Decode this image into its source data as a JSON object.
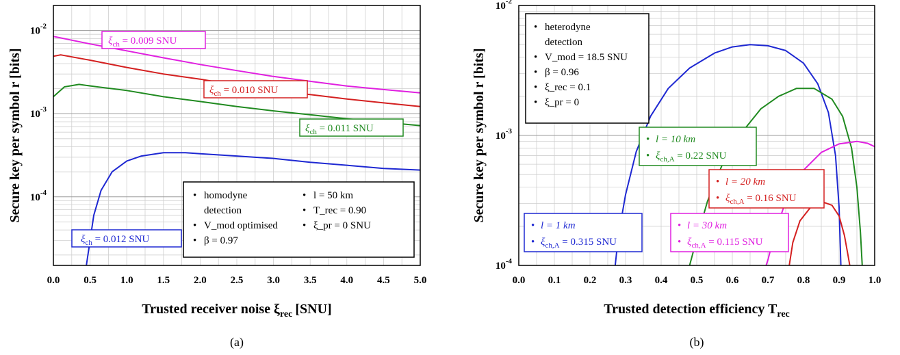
{
  "chart_data": [
    {
      "type": "line",
      "caption": "(a)",
      "xlabel": "Trusted receiver noise ξ",
      "xlabel_sub": "rec",
      "xlabel_unit": "[SNU]",
      "ylabel": "Secure key per symbol r [bits]",
      "xlim": [
        0,
        5
      ],
      "ylim": [
        1.5e-05,
        0.02
      ],
      "yscale": "log",
      "grid": true,
      "x_ticks": [
        "0.0",
        "0.5",
        "1.0",
        "1.5",
        "2.0",
        "2.5",
        "3.0",
        "3.5",
        "4.0",
        "4.5",
        "5.0"
      ],
      "y_ticks": [
        {
          "base": "10",
          "exp": "-4"
        },
        {
          "base": "10",
          "exp": "-3"
        },
        {
          "base": "10",
          "exp": "-2"
        }
      ],
      "series": [
        {
          "name_pre": "ξ",
          "name_sub": "ch",
          "name_post": " = 0.009 SNU",
          "color": "#e020e0",
          "x": [
            0,
            0.5,
            1.0,
            1.5,
            2.0,
            2.5,
            3.0,
            3.5,
            4.0,
            4.5,
            5.0
          ],
          "y": [
            0.0085,
            0.0069,
            0.0057,
            0.0047,
            0.0039,
            0.0033,
            0.0028,
            0.00245,
            0.00215,
            0.00195,
            0.00178
          ]
        },
        {
          "name_pre": "ξ",
          "name_sub": "ch",
          "name_post": " = 0.010 SNU",
          "color": "#d42020",
          "x": [
            0,
            0.1,
            0.5,
            1.0,
            1.5,
            2.0,
            2.5,
            3.0,
            3.5,
            4.0,
            4.5,
            5.0
          ],
          "y": [
            0.0049,
            0.0051,
            0.0044,
            0.0036,
            0.003,
            0.0026,
            0.0022,
            0.0019,
            0.0017,
            0.0015,
            0.00135,
            0.00122
          ]
        },
        {
          "name_pre": "ξ",
          "name_sub": "ch",
          "name_post": " = 0.011 SNU",
          "color": "#208a20",
          "x": [
            0,
            0.15,
            0.35,
            0.6,
            1.0,
            1.5,
            2.0,
            2.5,
            3.0,
            3.5,
            4.0,
            4.5,
            5.0
          ],
          "y": [
            0.0016,
            0.0021,
            0.00225,
            0.0021,
            0.0019,
            0.0016,
            0.0014,
            0.00122,
            0.00108,
            0.00097,
            0.00087,
            0.00079,
            0.00072
          ]
        },
        {
          "name_pre": "ξ",
          "name_sub": "ch",
          "name_post": " = 0.012 SNU",
          "color": "#1e28d2",
          "x": [
            0.45,
            0.5,
            0.55,
            0.65,
            0.8,
            1.0,
            1.2,
            1.5,
            1.8,
            2.0,
            2.5,
            3.0,
            3.5,
            4.0,
            4.5,
            5.0
          ],
          "y": [
            1.5e-05,
            3e-05,
            6e-05,
            0.00012,
            0.0002,
            0.00027,
            0.00031,
            0.00034,
            0.00034,
            0.00033,
            0.00031,
            0.00029,
            0.00026,
            0.00024,
            0.00022,
            0.00021
          ]
        }
      ],
      "params_box": {
        "col1": [
          "homodyne",
          "detection",
          "V_mod optimised",
          "β = 0.97"
        ],
        "col2": [
          "l = 50 km",
          "T_rec = 0.90",
          "ξ_pr = 0 SNU"
        ]
      }
    },
    {
      "type": "line",
      "caption": "(b)",
      "xlabel": "Trusted detection efficiency T",
      "xlabel_sub": "rec",
      "ylabel": "Secure key per symbol r [bits]",
      "xlim": [
        0,
        1
      ],
      "ylim": [
        0.0001,
        0.01
      ],
      "yscale": "log",
      "grid": true,
      "x_ticks": [
        "0.0",
        "0.1",
        "0.2",
        "0.3",
        "0.4",
        "0.5",
        "0.6",
        "0.7",
        "0.8",
        "0.9",
        "1.0"
      ],
      "y_ticks": [
        {
          "base": "10",
          "exp": "-4"
        },
        {
          "base": "10",
          "exp": "-3"
        },
        {
          "base": "10",
          "exp": "-2"
        }
      ],
      "series": [
        {
          "l_label": "l = 1 km",
          "xi_pre": "ξ",
          "xi_sub": "ch,A",
          "xi_post": " = 0.315 SNU",
          "color": "#1e28d2",
          "x": [
            0.271,
            0.28,
            0.3,
            0.33,
            0.37,
            0.42,
            0.48,
            0.55,
            0.6,
            0.65,
            0.7,
            0.75,
            0.8,
            0.84,
            0.87,
            0.89,
            0.9,
            0.905
          ],
          "y": [
            0.0001,
            0.00017,
            0.00035,
            0.00075,
            0.0014,
            0.0023,
            0.0033,
            0.0043,
            0.0048,
            0.005,
            0.0049,
            0.0045,
            0.0036,
            0.0025,
            0.0015,
            0.0007,
            0.00028,
            0.0001
          ]
        },
        {
          "l_label": "l = 10 km",
          "xi_pre": "ξ",
          "xi_sub": "ch,A",
          "xi_post": " = 0.22 SNU",
          "color": "#208a20",
          "x": [
            0.48,
            0.5,
            0.53,
            0.57,
            0.62,
            0.68,
            0.73,
            0.78,
            0.83,
            0.88,
            0.91,
            0.935,
            0.95,
            0.96,
            0.965
          ],
          "y": [
            0.0001,
            0.00016,
            0.00031,
            0.00058,
            0.001,
            0.0016,
            0.002,
            0.0023,
            0.0023,
            0.0019,
            0.0014,
            0.0008,
            0.0004,
            0.00018,
            0.0001
          ]
        },
        {
          "l_label": "l = 20 km",
          "xi_pre": "ξ",
          "xi_sub": "ch,A",
          "xi_post": " = 0.16 SNU",
          "color": "#d42020",
          "x": [
            0.76,
            0.77,
            0.79,
            0.82,
            0.85,
            0.88,
            0.9,
            0.915,
            0.925,
            0.93
          ],
          "y": [
            0.0001,
            0.00015,
            0.00022,
            0.00028,
            0.00031,
            0.00029,
            0.00024,
            0.00017,
            0.00012,
            0.0001
          ]
        },
        {
          "l_label": "l = 30 km",
          "xi_pre": "ξ",
          "xi_sub": "ch,A",
          "xi_post": " = 0.115 SNU",
          "color": "#e020e0",
          "x": [
            0.695,
            0.7,
            0.72,
            0.75,
            0.8,
            0.85,
            0.9,
            0.95,
            0.98,
            1.0
          ],
          "y": [
            0.0001,
            0.00011,
            0.00018,
            0.00031,
            0.00054,
            0.00074,
            0.00086,
            0.0009,
            0.00087,
            0.00082
          ]
        }
      ],
      "params_box": [
        "heterodyne",
        "detection",
        "V_mod = 18.5 SNU",
        "β = 0.96",
        "ξ_rec = 0.1",
        "ξ_pr = 0"
      ]
    }
  ]
}
